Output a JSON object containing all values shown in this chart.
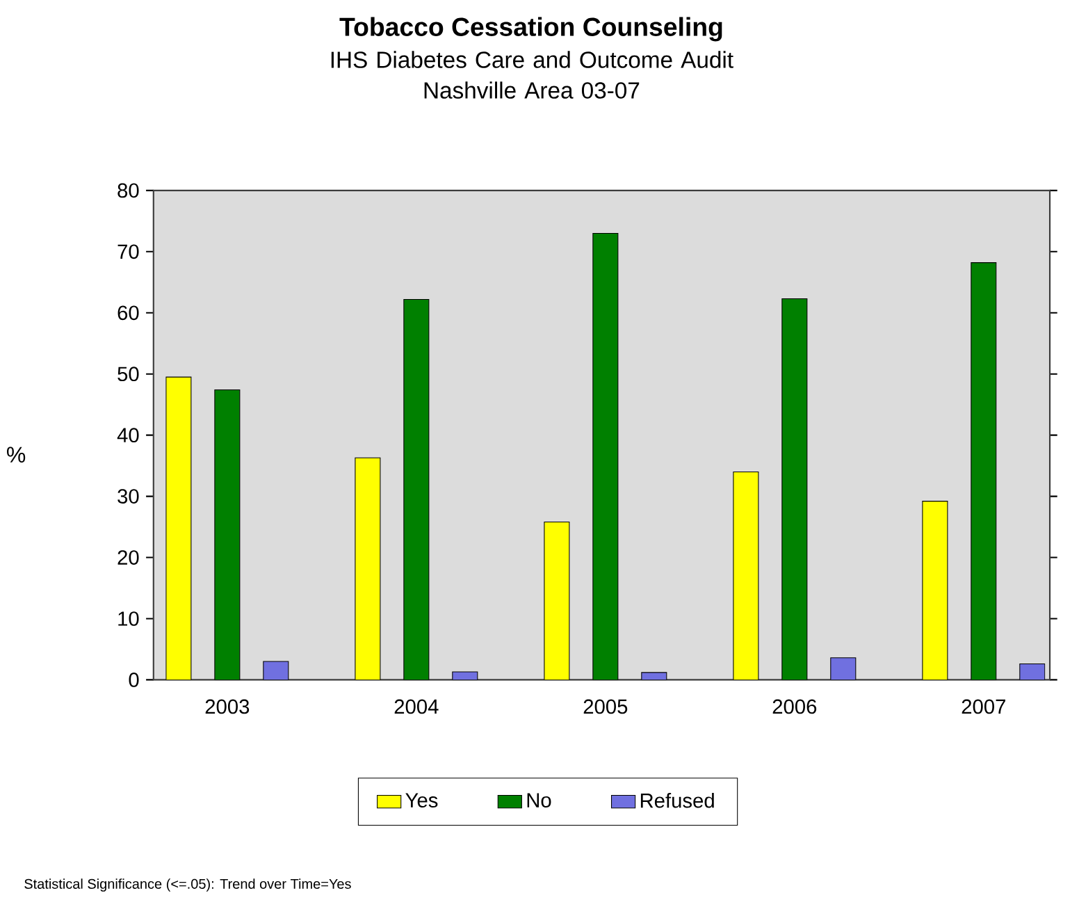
{
  "chart_data": {
    "type": "bar",
    "title": "Tobacco Cessation Counseling",
    "subtitle": "IHS Diabetes Care and Outcome Audit\nNashville Area 03-07",
    "ylabel": "%",
    "categories": [
      "2003",
      "2004",
      "2005",
      "2006",
      "2007"
    ],
    "series": [
      {
        "name": "Yes",
        "color": "#ffff00",
        "values": [
          49.5,
          36.3,
          25.8,
          34.0,
          29.2
        ]
      },
      {
        "name": "No",
        "color": "#008000",
        "values": [
          47.4,
          62.2,
          73.0,
          62.3,
          68.2
        ]
      },
      {
        "name": "Refused",
        "color": "#7070e0",
        "values": [
          3.0,
          1.3,
          1.2,
          3.6,
          2.6
        ]
      }
    ],
    "ylim": [
      0,
      80
    ],
    "yticks": [
      0,
      10,
      20,
      30,
      40,
      50,
      60,
      70,
      80
    ],
    "grid": false,
    "legend": "bottom",
    "annotations": [
      "Statistical Significance (<=.05): Trend over Time=Yes"
    ]
  }
}
